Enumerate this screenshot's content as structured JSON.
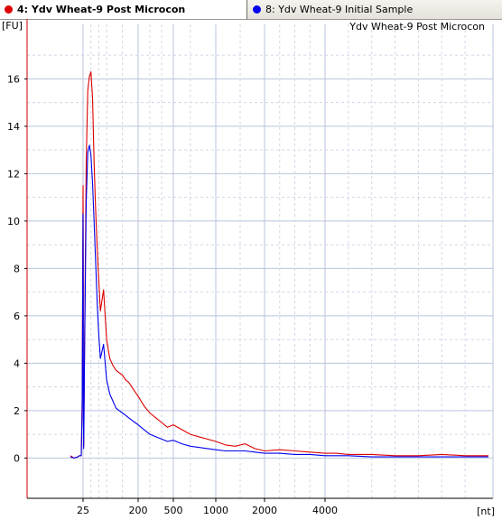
{
  "tabs": [
    {
      "label": "4: Ydv Wheat-9 Post Microcon",
      "color": "#dd0000",
      "active": true
    },
    {
      "label": "8: Ydv Wheat-9 Initial Sample",
      "color": "#0000ee",
      "active": false
    }
  ],
  "chart_data": {
    "type": "line",
    "title": "Ydv Wheat-9 Post Microcon",
    "ylabel": "[FU]",
    "xlabel": "[nt]",
    "ylim": [
      -1.7,
      18.3
    ],
    "y_ticks": [
      0,
      2,
      4,
      6,
      8,
      10,
      12,
      14,
      16
    ],
    "x_ticks": [
      25,
      200,
      500,
      1000,
      2000,
      4000
    ],
    "x_scale": "nonlinear size ladder",
    "grid": true,
    "series": [
      {
        "color": "#dd0000",
        "x": [
          18,
          20,
          22,
          23,
          24,
          24.5,
          25,
          25.5,
          26,
          27,
          28,
          30,
          35,
          40,
          45,
          50,
          55,
          60,
          65,
          70,
          75,
          80,
          90,
          100,
          110,
          120,
          130,
          140,
          150,
          160,
          170,
          180,
          190,
          200,
          250,
          300,
          350,
          400,
          450,
          500,
          600,
          700,
          800,
          900,
          1000,
          1200,
          1400,
          1600,
          1800,
          2000,
          2500,
          3000,
          3500,
          4000,
          4500,
          5000,
          6000,
          7000,
          8000,
          9000,
          10000,
          11000
        ],
        "y": [
          0.1,
          0.0,
          0.05,
          0.1,
          0.1,
          2.5,
          11.5,
          8.5,
          3.0,
          0.5,
          1.8,
          5.0,
          12.5,
          15.5,
          16.1,
          16.3,
          15.2,
          12.5,
          10.5,
          8.8,
          7.5,
          6.2,
          7.1,
          5.0,
          4.2,
          3.9,
          3.7,
          3.6,
          3.5,
          3.3,
          3.2,
          3.0,
          2.8,
          2.6,
          2.2,
          1.9,
          1.7,
          1.5,
          1.3,
          1.4,
          1.2,
          1.0,
          0.9,
          0.8,
          0.7,
          0.55,
          0.5,
          0.6,
          0.4,
          0.3,
          0.35,
          0.3,
          0.25,
          0.2,
          0.2,
          0.15,
          0.15,
          0.1,
          0.1,
          0.15,
          0.1,
          0.1
        ]
      },
      {
        "color": "#0000ee",
        "x": [
          18,
          20,
          22,
          23,
          24,
          24.5,
          25,
          25.5,
          26,
          27,
          28,
          30,
          35,
          40,
          45,
          50,
          55,
          60,
          65,
          70,
          75,
          80,
          90,
          100,
          110,
          120,
          130,
          140,
          150,
          160,
          170,
          180,
          190,
          200,
          250,
          300,
          350,
          400,
          450,
          500,
          600,
          700,
          800,
          900,
          1000,
          1200,
          1400,
          1600,
          1800,
          2000,
          2500,
          3000,
          3500,
          4000,
          4500,
          5000,
          6000,
          7000,
          8000,
          9000,
          10000,
          11000
        ],
        "y": [
          0.05,
          0.0,
          0.05,
          0.1,
          0.1,
          2.0,
          10.3,
          7.0,
          2.5,
          0.4,
          1.5,
          4.5,
          10.8,
          12.9,
          13.2,
          12.8,
          11.6,
          10.0,
          8.3,
          6.5,
          5.2,
          4.2,
          4.8,
          3.3,
          2.7,
          2.4,
          2.1,
          2.0,
          1.9,
          1.8,
          1.7,
          1.6,
          1.5,
          1.4,
          1.2,
          1.0,
          0.9,
          0.8,
          0.7,
          0.75,
          0.6,
          0.5,
          0.45,
          0.4,
          0.35,
          0.3,
          0.3,
          0.3,
          0.25,
          0.2,
          0.2,
          0.15,
          0.15,
          0.1,
          0.1,
          0.1,
          0.05,
          0.05,
          0.05,
          0.05,
          0.05,
          0.05
        ]
      }
    ]
  }
}
